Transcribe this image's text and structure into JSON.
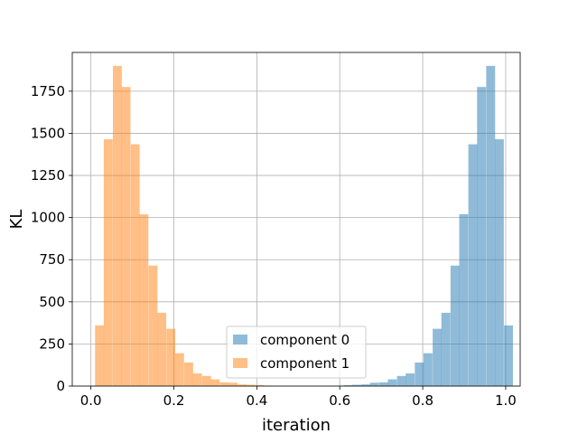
{
  "chart_data": {
    "type": "bar",
    "subtype": "histogram",
    "title": "",
    "xlabel": "iteration",
    "ylabel": "KL",
    "xlim": [
      -0.045,
      1.035
    ],
    "ylim": [
      0,
      1980
    ],
    "xticks": [
      "0.0",
      "0.2",
      "0.4",
      "0.6",
      "0.8",
      "1.0"
    ],
    "yticks": [
      "0",
      "250",
      "500",
      "750",
      "1000",
      "1250",
      "1500",
      "1750"
    ],
    "grid": true,
    "legend_position": "lower center",
    "series": [
      {
        "name": "component 0",
        "color": "#1f77b4",
        "alpha": 0.5,
        "bin_width": 0.0215,
        "bins": [
          {
            "x0": 0.587,
            "count": 2
          },
          {
            "x0": 0.609,
            "count": 5
          },
          {
            "x0": 0.63,
            "count": 8
          },
          {
            "x0": 0.652,
            "count": 10
          },
          {
            "x0": 0.673,
            "count": 20
          },
          {
            "x0": 0.695,
            "count": 22
          },
          {
            "x0": 0.716,
            "count": 40
          },
          {
            "x0": 0.738,
            "count": 60
          },
          {
            "x0": 0.759,
            "count": 75
          },
          {
            "x0": 0.781,
            "count": 140
          },
          {
            "x0": 0.802,
            "count": 195
          },
          {
            "x0": 0.824,
            "count": 340
          },
          {
            "x0": 0.845,
            "count": 435
          },
          {
            "x0": 0.867,
            "count": 715
          },
          {
            "x0": 0.888,
            "count": 1020
          },
          {
            "x0": 0.91,
            "count": 1435
          },
          {
            "x0": 0.931,
            "count": 1775
          },
          {
            "x0": 0.953,
            "count": 1900
          },
          {
            "x0": 0.974,
            "count": 1465
          },
          {
            "x0": 0.996,
            "count": 360
          }
        ]
      },
      {
        "name": "component 1",
        "color": "#ff7f0e",
        "alpha": 0.5,
        "bin_width": 0.0215,
        "bins": [
          {
            "x0": 0.01,
            "count": 360
          },
          {
            "x0": 0.031,
            "count": 1465
          },
          {
            "x0": 0.053,
            "count": 1900
          },
          {
            "x0": 0.074,
            "count": 1775
          },
          {
            "x0": 0.096,
            "count": 1435
          },
          {
            "x0": 0.117,
            "count": 1020
          },
          {
            "x0": 0.139,
            "count": 715
          },
          {
            "x0": 0.16,
            "count": 435
          },
          {
            "x0": 0.182,
            "count": 340
          },
          {
            "x0": 0.203,
            "count": 195
          },
          {
            "x0": 0.225,
            "count": 140
          },
          {
            "x0": 0.246,
            "count": 75
          },
          {
            "x0": 0.268,
            "count": 60
          },
          {
            "x0": 0.289,
            "count": 40
          },
          {
            "x0": 0.311,
            "count": 22
          },
          {
            "x0": 0.332,
            "count": 20
          },
          {
            "x0": 0.354,
            "count": 10
          },
          {
            "x0": 0.375,
            "count": 8
          },
          {
            "x0": 0.397,
            "count": 5
          },
          {
            "x0": 0.418,
            "count": 2
          }
        ]
      }
    ]
  }
}
